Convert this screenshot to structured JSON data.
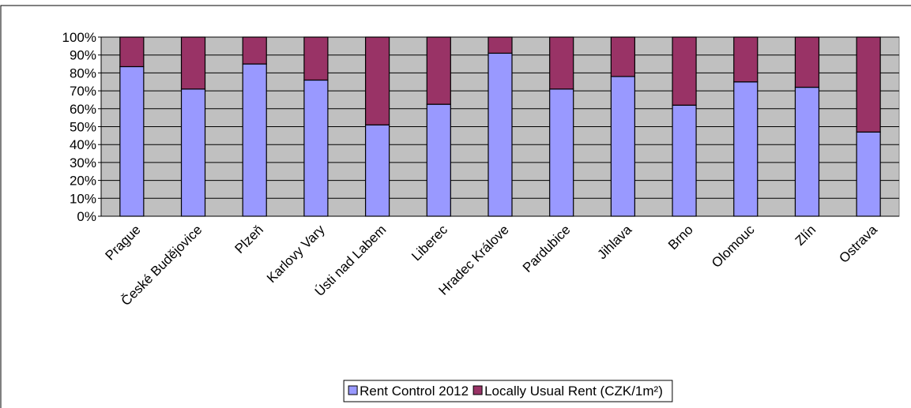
{
  "chart_data": {
    "type": "stacked_bar",
    "categories": [
      "Prague",
      "České Budějovice",
      "Plzeň",
      "Karlovy Vary",
      "Ústi nad Labem",
      "Liberec",
      "Hradec Králove",
      "Pardubice",
      "Jihlava",
      "Brno",
      "Olomouc",
      "Zlín",
      "Ostrava"
    ],
    "series": [
      {
        "name": "Rent Control 2012",
        "color": "#9999ff",
        "values": [
          83.5,
          71,
          85,
          76,
          51,
          62.5,
          91,
          71,
          78,
          62,
          75,
          72,
          47
        ]
      },
      {
        "name": "Locally Usual Rent (CZK/1m²)",
        "color": "#993366",
        "values": [
          16.5,
          29,
          15,
          24,
          49,
          37.5,
          9,
          29,
          22,
          38,
          25,
          28,
          53
        ]
      }
    ],
    "ylim": [
      0,
      100
    ],
    "yticks": [
      {
        "value": 0,
        "label": "0%"
      },
      {
        "value": 10,
        "label": "10%"
      },
      {
        "value": 20,
        "label": "20%"
      },
      {
        "value": 30,
        "label": "30%"
      },
      {
        "value": 40,
        "label": "40%"
      },
      {
        "value": 50,
        "label": "50%"
      },
      {
        "value": 60,
        "label": "60%"
      },
      {
        "value": 70,
        "label": "70%"
      },
      {
        "value": 80,
        "label": "80%"
      },
      {
        "value": 90,
        "label": "90%"
      },
      {
        "value": 100,
        "label": "100%"
      }
    ],
    "grid": true,
    "legend": "bottom"
  }
}
